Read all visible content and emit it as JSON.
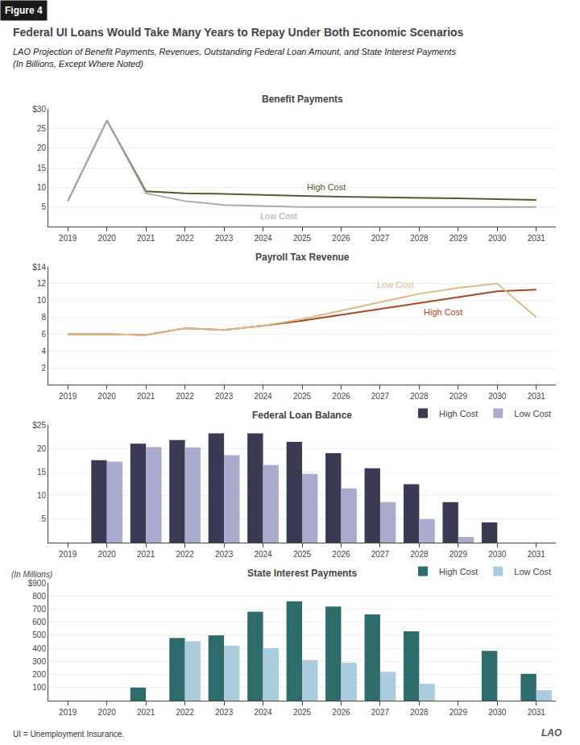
{
  "title": "Federal UI Loans Would Take Many Years to Repay Under Both Economic Scenarios",
  "subtitle": [
    "LAO Projection of Benefit Payments, Revenues, Outstanding Federal Loan Amount, and State Interest Payments",
    "(In Billions, Except Where Noted)"
  ],
  "annotations": [
    "Figure 4",
    "UI = Unemployment Insurance.",
    "LAO"
  ],
  "chart_data": [
    {
      "type": "line",
      "title": "Benefit Payments",
      "categories": [
        "2019",
        "2020",
        "2021",
        "2022",
        "2023",
        "2024",
        "2025",
        "2026",
        "2027",
        "2028",
        "2029",
        "2030",
        "2031"
      ],
      "series": [
        {
          "name": "High Cost",
          "color": "#5a5a2a",
          "values": [
            6.5,
            27.0,
            9.0,
            8.5,
            8.3,
            8.0,
            7.8,
            7.6,
            7.5,
            7.4,
            7.2,
            7.0,
            6.8
          ]
        },
        {
          "name": "Low Cost",
          "color": "#aaaaaa",
          "values": [
            6.5,
            27.0,
            8.5,
            6.5,
            5.5,
            5.2,
            5.0,
            5.0,
            5.0,
            5.0,
            5.0,
            5.0,
            5.0
          ]
        }
      ],
      "ylim": [
        0,
        30
      ],
      "yticks": [
        5,
        10,
        15,
        20,
        25,
        {
          "value": 30,
          "label": "$30"
        }
      ],
      "grid": true
    },
    {
      "type": "line",
      "title": "Payroll Tax Revenue",
      "categories": [
        "2019",
        "2020",
        "2021",
        "2022",
        "2023",
        "2024",
        "2025",
        "2026",
        "2027",
        "2028",
        "2029",
        "2030",
        "2031"
      ],
      "series": [
        {
          "name": "High Cost",
          "color": "#aa4422",
          "values": [
            6.0,
            6.0,
            5.9,
            6.7,
            6.5,
            7.0,
            7.6,
            8.3,
            9.0,
            9.7,
            10.4,
            11.1,
            11.3
          ]
        },
        {
          "name": "Low Cost",
          "color": "#ddbb88",
          "values": [
            6.0,
            6.0,
            5.9,
            6.7,
            6.5,
            7.0,
            7.8,
            8.8,
            9.8,
            10.8,
            11.5,
            12.0,
            8.0
          ]
        }
      ],
      "ylim": [
        0,
        14
      ],
      "yticks": [
        2,
        4,
        6,
        8,
        10,
        12,
        {
          "value": 14,
          "label": "$14"
        }
      ],
      "grid": true
    },
    {
      "type": "bar",
      "title": "Federal Loan Balance",
      "categories": [
        "2019",
        "2020",
        "2021",
        "2022",
        "2023",
        "2024",
        "2025",
        "2026",
        "2027",
        "2028",
        "2029",
        "2030",
        "2031"
      ],
      "series": [
        {
          "name": "High Cost",
          "color": "#3a3a55",
          "values": [
            0,
            17.5,
            21.0,
            21.8,
            23.2,
            23.2,
            21.4,
            19.0,
            15.8,
            12.4,
            8.6,
            4.3,
            0
          ]
        },
        {
          "name": "Low Cost",
          "color": "#aaaacc",
          "values": [
            0,
            17.2,
            20.3,
            20.2,
            18.6,
            16.5,
            14.6,
            11.5,
            8.6,
            5.0,
            1.2,
            0,
            0
          ]
        }
      ],
      "ylim": [
        0,
        25
      ],
      "yticks": [
        5,
        10,
        15,
        20,
        {
          "value": 25,
          "label": "$25"
        }
      ],
      "grid": true,
      "legend": "upper right"
    },
    {
      "type": "bar",
      "title": "State Interest Payments",
      "subtitle": "(In Millions)",
      "categories": [
        "2019",
        "2020",
        "2021",
        "2022",
        "2023",
        "2024",
        "2025",
        "2026",
        "2027",
        "2028",
        "2029",
        "2030",
        "2031"
      ],
      "series": [
        {
          "name": "High Cost",
          "color": "#2e6b6b",
          "values": [
            0,
            0,
            100,
            480,
            500,
            680,
            760,
            720,
            660,
            530,
            0,
            380,
            205
          ]
        },
        {
          "name": "Low Cost",
          "color": "#aaccdd",
          "values": [
            0,
            0,
            0,
            455,
            420,
            400,
            310,
            290,
            220,
            130,
            0,
            0,
            80
          ]
        }
      ],
      "ylim": [
        0,
        900
      ],
      "yticks": [
        100,
        200,
        300,
        400,
        500,
        600,
        700,
        800,
        {
          "value": 900,
          "label": "$900"
        }
      ],
      "grid": true,
      "legend": "upper right"
    }
  ]
}
